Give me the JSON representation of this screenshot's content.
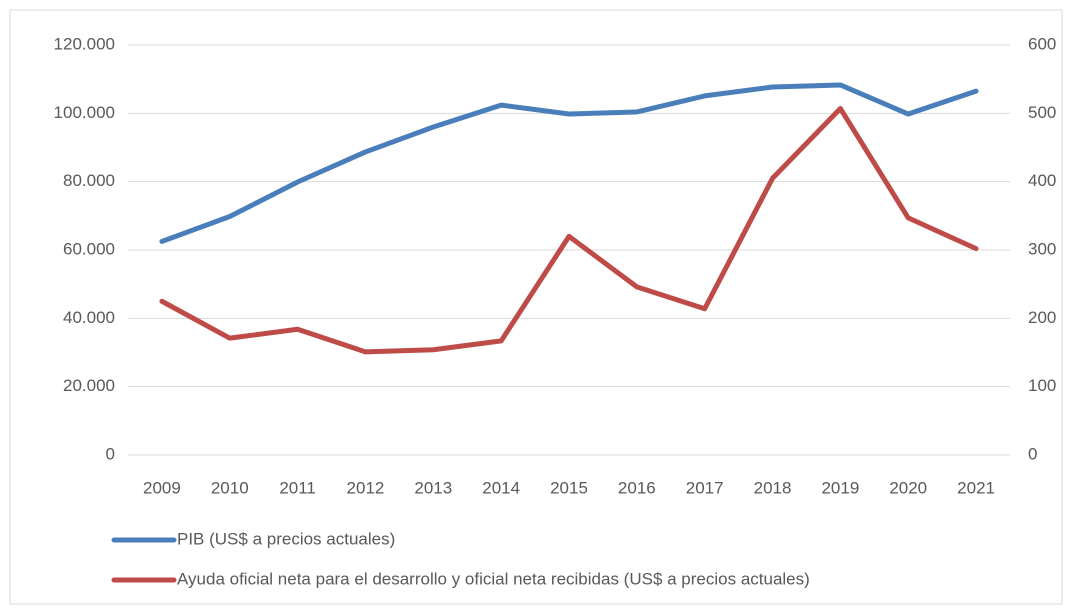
{
  "chart_data": {
    "type": "line",
    "categories": [
      "2009",
      "2010",
      "2011",
      "2012",
      "2013",
      "2014",
      "2015",
      "2016",
      "2017",
      "2018",
      "2019",
      "2020",
      "2021"
    ],
    "series": [
      {
        "name": "PIB (US$ a precios actuales)",
        "color": "#4a7ebb",
        "values": [
          62500,
          69800,
          79900,
          88700,
          96000,
          102400,
          99800,
          100400,
          105100,
          107700,
          108300,
          99800,
          106500
        ]
      },
      {
        "name": "Ayuda oficial neta para el desarrollo y oficial neta recibidas (US$ a precios actuales)",
        "color": "#be4b48",
        "axis": "y2",
        "values": [
          225,
          171,
          184,
          151,
          154,
          167,
          320,
          246,
          214,
          405,
          507,
          347,
          302
        ]
      }
    ],
    "ylim": [
      0,
      120000
    ],
    "yticks": [
      0,
      {
        "value": 20000,
        "label": "20.000"
      },
      {
        "value": 40000,
        "label": "40.000"
      },
      {
        "value": 60000,
        "label": "60.000"
      },
      {
        "value": 80000,
        "label": "80.000"
      },
      {
        "value": 100000,
        "label": "100.000"
      },
      {
        "value": 120000,
        "label": "120.000"
      }
    ],
    "y2lim": [
      0,
      600
    ],
    "y2ticks": [
      0,
      100,
      200,
      300,
      400,
      500,
      600
    ],
    "grid": true,
    "legend": "bottom"
  }
}
